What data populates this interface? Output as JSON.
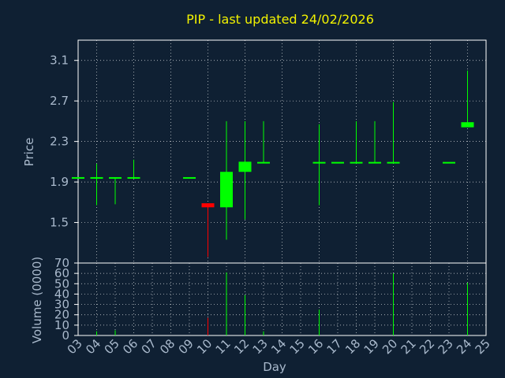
{
  "chart_data": [
    {
      "type": "candlestick",
      "title": "PIP - last updated 24/02/2026",
      "ylabel": "Price",
      "ylim": [
        1.1,
        3.3
      ],
      "yticks": [
        "1.5",
        "1.9",
        "2.3",
        "2.7",
        "3.1"
      ],
      "xlabel": "Day",
      "xticks": [
        "03",
        "04",
        "05",
        "06",
        "07",
        "08",
        "09",
        "10",
        "11",
        "12",
        "13",
        "14",
        "15",
        "16",
        "17",
        "18",
        "19",
        "20",
        "21",
        "22",
        "23",
        "24",
        "25"
      ],
      "up_color": "#00ff00",
      "down_color": "#ff0000",
      "candles": [
        {
          "day": 3,
          "open": 1.94,
          "close": 1.94,
          "high": 1.94,
          "low": 1.94
        },
        {
          "day": 4,
          "open": 1.94,
          "close": 1.94,
          "high": 2.08,
          "low": 1.67
        },
        {
          "day": 5,
          "open": 1.94,
          "close": 1.94,
          "high": 1.94,
          "low": 1.68
        },
        {
          "day": 6,
          "open": 1.94,
          "close": 1.94,
          "high": 2.12,
          "low": 1.94
        },
        {
          "day": 9,
          "open": 1.94,
          "close": 1.94,
          "high": 1.94,
          "low": 1.94
        },
        {
          "day": 10,
          "open": 1.69,
          "close": 1.65,
          "high": 1.69,
          "low": 1.16
        },
        {
          "day": 11,
          "open": 1.65,
          "close": 2.0,
          "high": 2.5,
          "low": 1.33
        },
        {
          "day": 12,
          "open": 2.0,
          "close": 2.1,
          "high": 2.5,
          "low": 1.53
        },
        {
          "day": 13,
          "open": 2.09,
          "close": 2.09,
          "high": 2.5,
          "low": 2.09
        },
        {
          "day": 16,
          "open": 2.09,
          "close": 2.09,
          "high": 2.47,
          "low": 1.67
        },
        {
          "day": 17,
          "open": 2.09,
          "close": 2.09,
          "high": 2.09,
          "low": 2.09
        },
        {
          "day": 18,
          "open": 2.09,
          "close": 2.09,
          "high": 2.5,
          "low": 2.09
        },
        {
          "day": 19,
          "open": 2.09,
          "close": 2.09,
          "high": 2.5,
          "low": 2.09
        },
        {
          "day": 20,
          "open": 2.09,
          "close": 2.09,
          "high": 2.69,
          "low": 2.09
        },
        {
          "day": 23,
          "open": 2.09,
          "close": 2.09,
          "high": 2.09,
          "low": 2.09
        },
        {
          "day": 24,
          "open": 2.44,
          "close": 2.49,
          "high": 3.0,
          "low": 2.44
        }
      ]
    },
    {
      "type": "bar",
      "ylabel": "Volume (0000)",
      "ylim": [
        0,
        70
      ],
      "yticks": [
        "0",
        "10",
        "20",
        "30",
        "40",
        "50",
        "60",
        "70"
      ],
      "bars": [
        {
          "day": 4,
          "value": 4,
          "color": "#00ff00"
        },
        {
          "day": 5,
          "value": 5,
          "color": "#00ff00"
        },
        {
          "day": 10,
          "value": 17,
          "color": "#ff0000"
        },
        {
          "day": 11,
          "value": 61,
          "color": "#00ff00"
        },
        {
          "day": 12,
          "value": 39,
          "color": "#00ff00"
        },
        {
          "day": 13,
          "value": 4,
          "color": "#00ff00"
        },
        {
          "day": 16,
          "value": 25,
          "color": "#00ff00"
        },
        {
          "day": 20,
          "value": 60,
          "color": "#00ff00"
        },
        {
          "day": 24,
          "value": 51,
          "color": "#00ff00"
        }
      ]
    }
  ]
}
